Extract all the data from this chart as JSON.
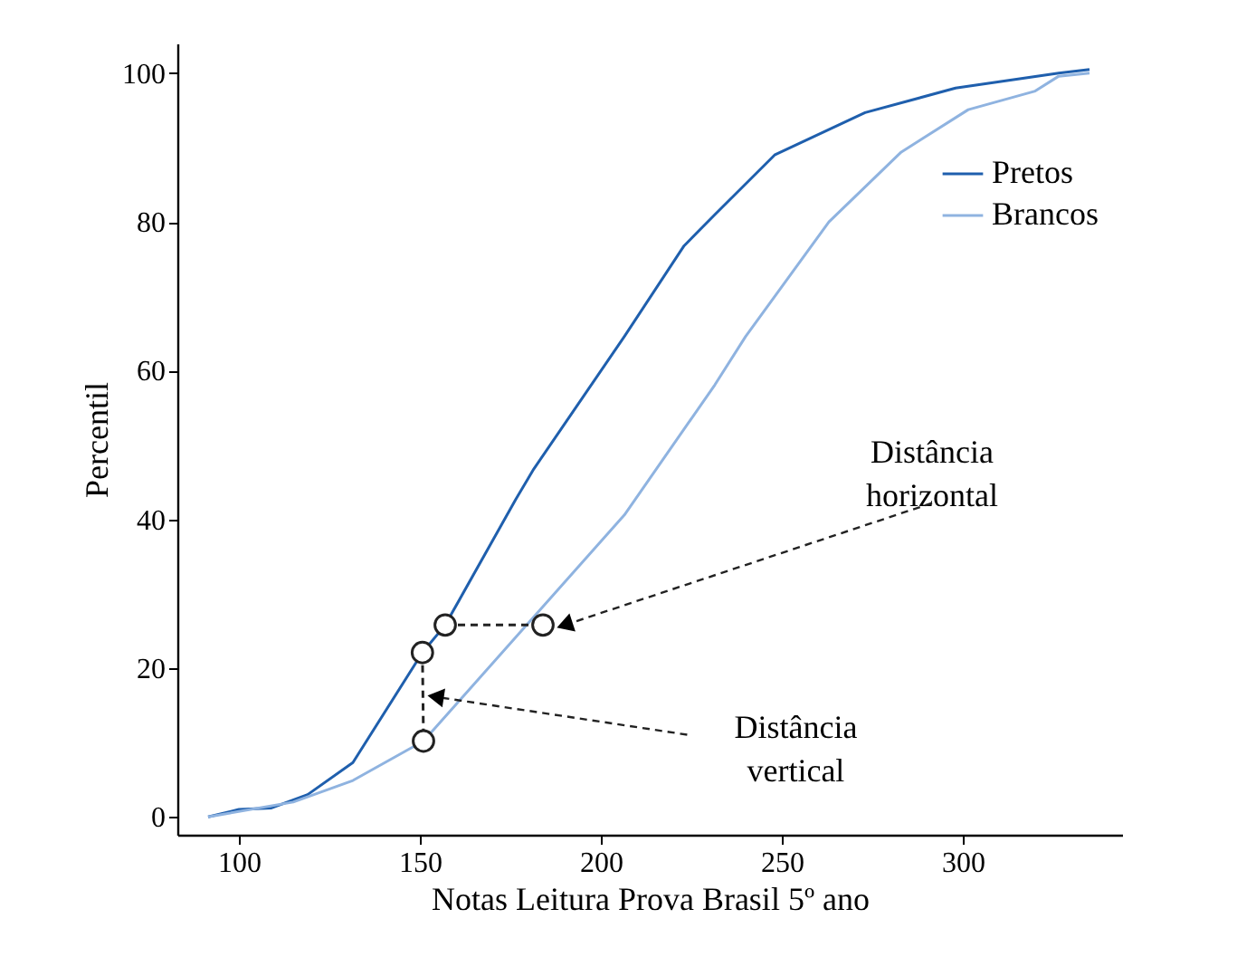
{
  "chart_data": {
    "type": "line",
    "xlabel": "Notas Leitura Prova Brasil 5º ano",
    "ylabel": "Percentil",
    "xlim": [
      83,
      344
    ],
    "ylim": [
      -2.4,
      104
    ],
    "xticks": [
      100,
      150,
      200,
      250,
      300
    ],
    "yticks": [
      0,
      20,
      40,
      60,
      80,
      100
    ],
    "grid": false,
    "legend": "top right",
    "line_style": "solid",
    "marker": "none",
    "series": [
      {
        "name": "Pretos",
        "color": "#1f5fad",
        "x": [
          91.5,
          100,
          109,
          119,
          131.5,
          150.7,
          157,
          176.5,
          181.5,
          206.5,
          223,
          231.5,
          248,
          273,
          298,
          326.5,
          335
        ],
        "values": [
          0,
          1,
          1.2,
          3,
          7.3,
          22.1,
          25.8,
          42.7,
          46.8,
          64.6,
          76.8,
          81,
          89,
          94.7,
          98,
          100,
          100.5
        ]
      },
      {
        "name": "Brancos",
        "color": "#8fb3e0",
        "x": [
          91.5,
          115,
          131.5,
          151,
          206.5,
          231.5,
          240,
          263,
          283,
          301.5,
          320,
          326.5,
          335
        ],
        "values": [
          0,
          2,
          4.9,
          10.2,
          40.6,
          58.1,
          64.6,
          80,
          89.4,
          95.1,
          97.6,
          99.6,
          100
        ]
      },
      {
        "type": "line",
        "line_style": "dashed",
        "marker": "circle",
        "color": "#222222",
        "x": [
          157,
          184
        ],
        "values": [
          25.8,
          25.8
        ]
      },
      {
        "type": "line",
        "line_style": "dashed",
        "marker": "circle",
        "color": "#222222",
        "x": [
          150.7,
          151
        ],
        "values": [
          22.1,
          10.2
        ]
      }
    ],
    "annotations": [
      "Distância\nhorizontal",
      "Distância\nvertical"
    ]
  }
}
